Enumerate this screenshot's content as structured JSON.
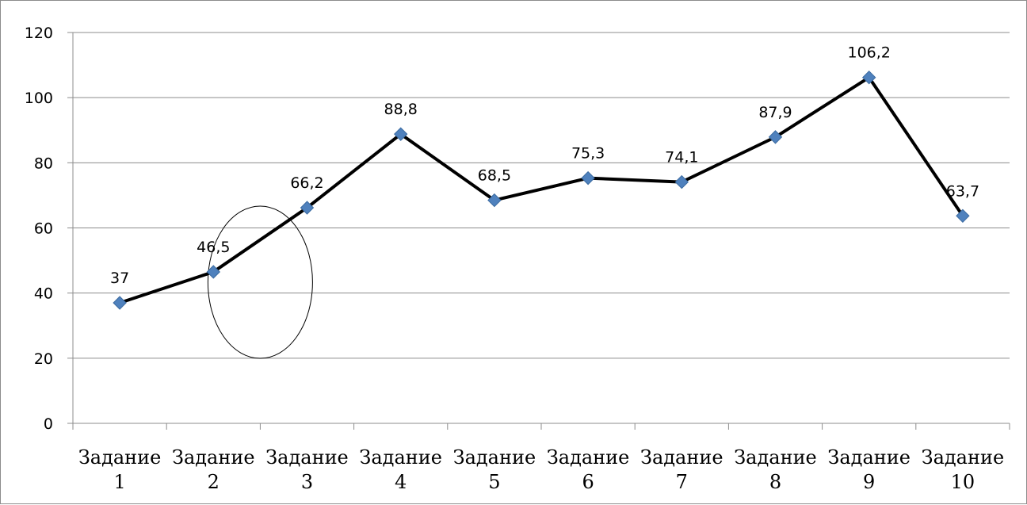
{
  "chart_data": {
    "type": "line",
    "title": "",
    "xlabel": "",
    "ylabel": "",
    "categories": [
      [
        "Задание",
        "1"
      ],
      [
        "Задание",
        "2"
      ],
      [
        "Задание",
        "3"
      ],
      [
        "Задание",
        "4"
      ],
      [
        "Задание",
        "5"
      ],
      [
        "Задание",
        "6"
      ],
      [
        "Задание",
        "7"
      ],
      [
        "Задание",
        "8"
      ],
      [
        "Задание",
        "9"
      ],
      [
        "Задание",
        "10"
      ]
    ],
    "values": [
      37,
      46.5,
      66.2,
      88.8,
      68.5,
      75.3,
      74.1,
      87.9,
      106.2,
      63.7
    ],
    "data_labels": [
      "37",
      "46,5",
      "66,2",
      "88,8",
      "68,5",
      "75,3",
      "74,1",
      "87,9",
      "106,2",
      "63,7"
    ],
    "y_ticks": [
      0,
      20,
      40,
      60,
      80,
      100,
      120
    ],
    "ylim": [
      0,
      120
    ],
    "grid": true,
    "legend": "none",
    "line_color": "#000000",
    "marker": "diamond",
    "marker_color": "#4f81bd",
    "annotation": {
      "shape": "ellipse",
      "encloses_categories": [
        1,
        2
      ]
    }
  }
}
